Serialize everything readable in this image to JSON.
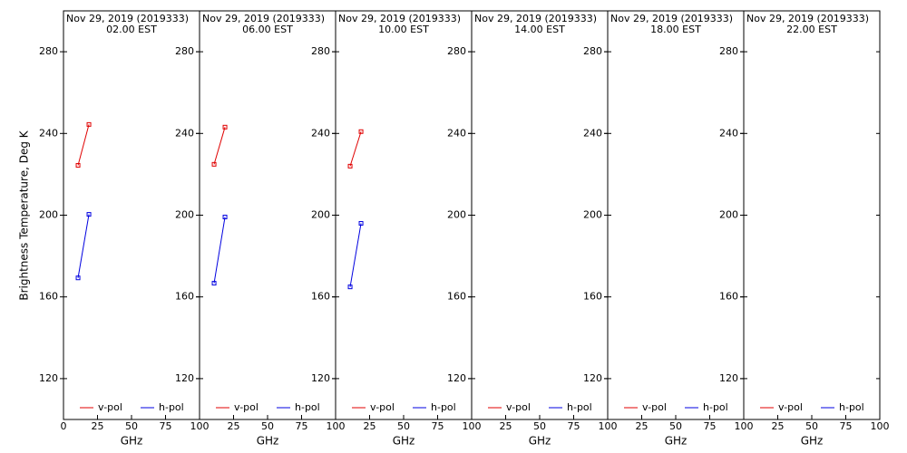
{
  "chart_data": [
    {
      "type": "line",
      "y_label": "Brightness Temperature, Deg K",
      "title": "Nov 29, 2019 (2019333)",
      "subtitle": "02.00 EST",
      "x_label": "GHz",
      "x": [
        10.7,
        18.7
      ],
      "xlim": [
        0,
        100
      ],
      "xticks": [
        0,
        25,
        50,
        75,
        100
      ],
      "ylim": [
        100,
        300
      ],
      "yticks": [
        120,
        160,
        200,
        240,
        280
      ],
      "series": [
        {
          "name": "v-pol",
          "color": "#e00000",
          "values": [
            224.4,
            244.4
          ]
        },
        {
          "name": "h-pol",
          "color": "#0000e0",
          "values": [
            169.3,
            200.4
          ]
        }
      ]
    },
    {
      "type": "line",
      "title": "Nov 29, 2019 (2019333)",
      "subtitle": "06.00 EST",
      "x_label": "GHz",
      "x": [
        10.7,
        18.7
      ],
      "xlim": [
        0,
        100
      ],
      "xticks": [
        25,
        50,
        75,
        100
      ],
      "ylim": [
        100,
        300
      ],
      "yticks": [
        120,
        160,
        200,
        240,
        280
      ],
      "series": [
        {
          "name": "v-pol",
          "color": "#e00000",
          "values": [
            224.9,
            243.1
          ]
        },
        {
          "name": "h-pol",
          "color": "#0000e0",
          "values": [
            166.7,
            199.1
          ]
        }
      ]
    },
    {
      "type": "line",
      "title": "Nov 29, 2019 (2019333)",
      "subtitle": "10.00 EST",
      "x_label": "GHz",
      "x": [
        10.7,
        18.7
      ],
      "xlim": [
        0,
        100
      ],
      "xticks": [
        25,
        50,
        75,
        100
      ],
      "ylim": [
        100,
        300
      ],
      "yticks": [
        120,
        160,
        200,
        240,
        280
      ],
      "series": [
        {
          "name": "v-pol",
          "color": "#e00000",
          "values": [
            224.0,
            240.9
          ]
        },
        {
          "name": "h-pol",
          "color": "#0000e0",
          "values": [
            164.9,
            196.0
          ]
        }
      ]
    },
    {
      "type": "line",
      "title": "Nov 29, 2019 (2019333)",
      "subtitle": "14.00 EST",
      "x_label": "GHz",
      "x": [
        10.7,
        18.7
      ],
      "xlim": [
        0,
        100
      ],
      "xticks": [
        25,
        50,
        75,
        100
      ],
      "ylim": [
        100,
        300
      ],
      "yticks": [
        120,
        160,
        200,
        240,
        280
      ],
      "series": [
        {
          "name": "v-pol",
          "color": "#e00000",
          "values": [
            null,
            null
          ]
        },
        {
          "name": "h-pol",
          "color": "#0000e0",
          "values": [
            null,
            null
          ]
        }
      ]
    },
    {
      "type": "line",
      "title": "Nov 29, 2019 (2019333)",
      "subtitle": "18.00 EST",
      "x_label": "GHz",
      "x": [
        10.7,
        18.7
      ],
      "xlim": [
        0,
        100
      ],
      "xticks": [
        25,
        50,
        75,
        100
      ],
      "ylim": [
        100,
        300
      ],
      "yticks": [
        120,
        160,
        200,
        240,
        280
      ],
      "series": [
        {
          "name": "v-pol",
          "color": "#e00000",
          "values": [
            null,
            null
          ]
        },
        {
          "name": "h-pol",
          "color": "#0000e0",
          "values": [
            null,
            null
          ]
        }
      ]
    },
    {
      "type": "line",
      "title": "Nov 29, 2019 (2019333)",
      "subtitle": "22.00 EST",
      "x_label": "GHz",
      "x": [
        10.7,
        18.7
      ],
      "xlim": [
        0,
        100
      ],
      "xticks": [
        25,
        50,
        75,
        100
      ],
      "ylim": [
        100,
        300
      ],
      "yticks": [
        120,
        160,
        200,
        240,
        280
      ],
      "series": [
        {
          "name": "v-pol",
          "color": "#e00000",
          "values": [
            null,
            null
          ]
        },
        {
          "name": "h-pol",
          "color": "#0000e0",
          "values": [
            null,
            null
          ]
        }
      ]
    }
  ]
}
